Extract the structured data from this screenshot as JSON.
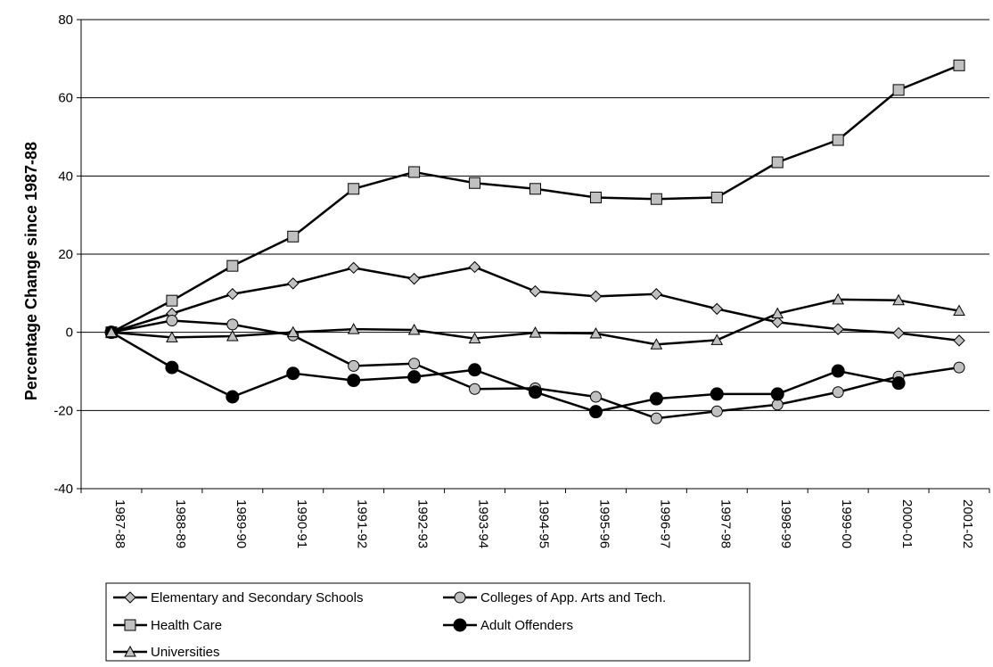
{
  "chart_data": {
    "type": "line",
    "title": "",
    "xlabel": "",
    "ylabel": "Percentage Change since 1987-88",
    "ylim": [
      -40,
      80
    ],
    "yticks": [
      -40,
      -20,
      0,
      20,
      40,
      60,
      80
    ],
    "grid": "horizontal",
    "legend_position": "bottom",
    "categories": [
      "1987-88",
      "1988-89",
      "1989-90",
      "1990-91",
      "1991-92",
      "1992-93",
      "1993-94",
      "1994-95",
      "1995-96",
      "1996-97",
      "1997-98",
      "1998-99",
      "1999-00",
      "2000-01",
      "2001-02"
    ],
    "series": [
      {
        "name": "Elementary and Secondary Schools",
        "marker": "diamond",
        "marker_color": "#c0c0c0",
        "values": [
          0,
          4.8,
          9.8,
          12.5,
          16.5,
          13.7,
          16.7,
          10.5,
          9.2,
          9.8,
          6.0,
          2.6,
          0.8,
          -0.2,
          -2.1
        ]
      },
      {
        "name": "Colleges of App. Arts and Tech.",
        "marker": "circle",
        "marker_color": "#c0c0c0",
        "values": [
          0,
          3.0,
          2.0,
          -0.8,
          -8.6,
          -8.0,
          -14.5,
          -14.3,
          -16.5,
          -22.0,
          -20.2,
          -18.5,
          -15.3,
          -11.3,
          -9.0
        ]
      },
      {
        "name": "Health Care",
        "marker": "square",
        "marker_color": "#c0c0c0",
        "values": [
          0,
          8.1,
          17.0,
          24.5,
          36.7,
          41.0,
          38.2,
          36.7,
          34.5,
          34.1,
          34.5,
          43.5,
          49.2,
          62.0,
          68.3
        ]
      },
      {
        "name": "Adult Offenders",
        "marker": "circle",
        "marker_color": "#000000",
        "values": [
          0,
          -9.0,
          -16.5,
          -10.5,
          -12.3,
          -11.4,
          -9.6,
          -15.3,
          -20.3,
          -17.0,
          -15.8,
          -15.8,
          -9.9,
          -13.0,
          null
        ]
      },
      {
        "name": "Universities",
        "marker": "triangle",
        "marker_color": "#c0c0c0",
        "values": [
          0,
          -1.3,
          -1.0,
          0.0,
          0.8,
          0.6,
          -1.6,
          -0.1,
          -0.3,
          -3.1,
          -2.0,
          4.8,
          8.4,
          8.2,
          5.5
        ]
      }
    ]
  }
}
